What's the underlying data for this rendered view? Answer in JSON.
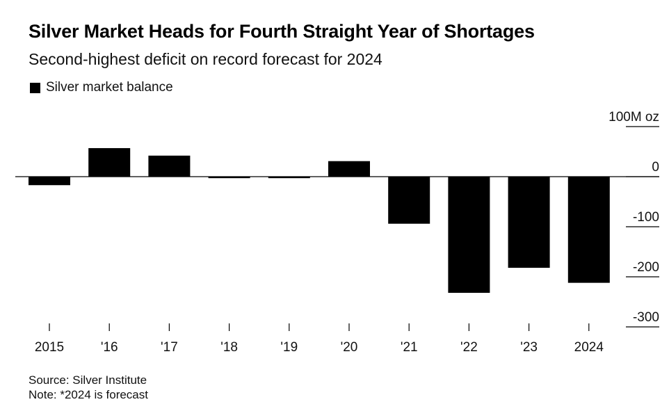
{
  "header": {
    "title": "Silver Market Heads for Fourth Straight Year of Shortages",
    "subtitle": "Second-highest deficit on record forecast for 2024"
  },
  "legend": {
    "label": "Silver market balance",
    "color": "#000000"
  },
  "footer": {
    "source": "Source: Silver Institute",
    "note": "Note: *2024 is forecast"
  },
  "chart_data": {
    "type": "bar",
    "title": "Silver Market Heads for Fourth Straight Year of Shortages",
    "subtitle": "Second-highest deficit on record forecast for 2024",
    "categories": [
      "2015",
      "'16",
      "'17",
      "'18",
      "'19",
      "'20",
      "'21",
      "'22",
      "'23",
      "2024"
    ],
    "series": [
      {
        "name": "Silver market balance",
        "values": [
          -17,
          57,
          42,
          -3,
          -3,
          31,
          -94,
          -232,
          -182,
          -212
        ],
        "color": "#000000"
      }
    ],
    "y_unit": "100M oz",
    "y_ticks": [
      100,
      0,
      -100,
      -200,
      -300
    ],
    "y_tick_labels": [
      "100M oz",
      "0",
      "-100",
      "-200",
      "-300"
    ],
    "ylim": [
      -300,
      100
    ],
    "xlabel": "",
    "ylabel": "",
    "legend_position": "top-left",
    "grid": false
  }
}
